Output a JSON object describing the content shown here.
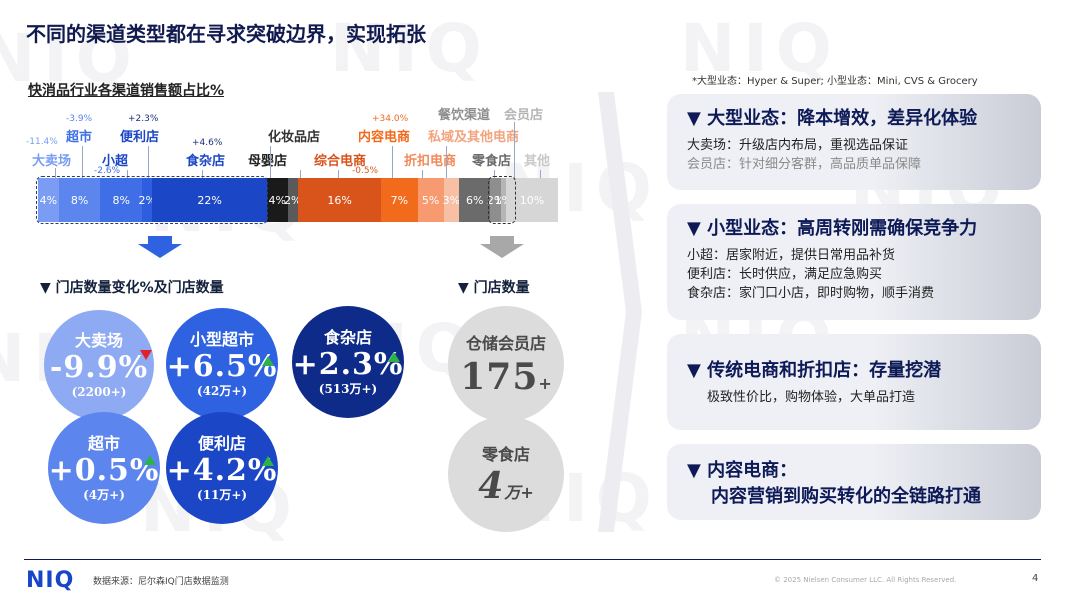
{
  "title": "不同的渠道类型都在寻求突破边界，实现拓张",
  "watermark": "NIQ",
  "chart_subtitle": "快消品行业各渠道销售额占比%",
  "format_note": "*大型业态：Hyper & Super;     小型业态：Mini, CVS & Grocery",
  "chart_data": {
    "type": "bar",
    "stacked": true,
    "categories": [
      "大卖场",
      "超市",
      "小超",
      "便利店",
      "食杂店",
      "母婴店",
      "化妆品店",
      "综合电商",
      "内容电商",
      "折扣电商",
      "私域及其他电商",
      "零食店",
      "会员店",
      "餐饮渠道",
      "其他"
    ],
    "values": [
      4,
      8,
      8,
      2,
      22,
      4,
      2,
      16,
      7,
      5,
      3,
      6,
      2,
      1,
      10
    ],
    "value_labels": [
      "4%",
      "8%",
      "8%",
      "2%",
      "22%",
      "4%",
      "2%",
      "16%",
      "7%",
      "5%",
      "3%",
      "6%",
      "2%",
      "1%",
      "10%"
    ],
    "change_labels": {
      "大卖场": "-11.4%",
      "超市": "-3.9%",
      "小超": "-2.6%",
      "便利店": "+2.3%",
      "食杂店": "+4.6%",
      "综合电商": "-0.5%",
      "内容电商": "+34.0%"
    },
    "colors": [
      "#7a9cf2",
      "#5c86ee",
      "#3f6ee6",
      "#2d5ee0",
      "#1b46c6",
      "#1a1a1a",
      "#5a5a5a",
      "#d9541a",
      "#f26a1b",
      "#f79a70",
      "#f7bfa4",
      "#6b6b6b",
      "#8e8e8e",
      "#b5b5b5",
      "#d6d6d6"
    ]
  },
  "bar_labels": [
    {
      "text": "-11.4%",
      "color": "#7a9cf2"
    },
    {
      "text": "大卖场",
      "color": "#7a9cf2"
    },
    {
      "text": "-3.9%",
      "color": "#5c86ee"
    },
    {
      "text": "超市",
      "color": "#3f6ee6"
    },
    {
      "text": "小超",
      "color": "#1b46c6"
    },
    {
      "text": "-2.6%",
      "color": "#3f6ee6"
    },
    {
      "text": "+2.3%",
      "color": "#1a2f7a"
    },
    {
      "text": "便利店",
      "color": "#1b46c6"
    },
    {
      "text": "+4.6%",
      "color": "#1a2f7a"
    },
    {
      "text": "食杂店",
      "color": "#1b46c6"
    },
    {
      "text": "母婴店",
      "color": "#222"
    },
    {
      "text": "化妆品店",
      "color": "#333"
    },
    {
      "text": "综合电商",
      "color": "#d9541a"
    },
    {
      "text": "-0.5%",
      "color": "#d9541a"
    },
    {
      "text": "+34.0%",
      "color": "#f26a1b"
    },
    {
      "text": "内容电商",
      "color": "#f26a1b"
    },
    {
      "text": "折扣电商",
      "color": "#f28a5a"
    },
    {
      "text": "私域及其他电商",
      "color": "#f3a37e"
    },
    {
      "text": "零食店",
      "color": "#6b6b6b"
    },
    {
      "text": "餐饮渠道",
      "color": "#8e8e8e"
    },
    {
      "text": "会员店",
      "color": "#b5b5b5"
    },
    {
      "text": "其他",
      "color": "#c8c8c8"
    }
  ],
  "store_section_title": "▼ 门店数量变化%及门店数量",
  "store_count_title": "▼ 门店数量",
  "circles": [
    {
      "name": "大卖场",
      "value": "-9.9%",
      "count": "(2200+)",
      "trend": "down",
      "color": "#8eaaf2"
    },
    {
      "name": "小型超市",
      "value": "+6.5%",
      "count": "(42万+)",
      "trend": "up",
      "color": "#2f62e0"
    },
    {
      "name": "食杂店",
      "value": "+2.3%",
      "count": "(513万+)",
      "trend": "up",
      "color": "#0e2b8a"
    },
    {
      "name": "超市",
      "value": "+0.5%",
      "count": "(4万+)",
      "trend": "up",
      "color": "#5c86ee"
    },
    {
      "name": "便利店",
      "value": "+4.2%",
      "count": "(11万+)",
      "trend": "up",
      "color": "#1b46c6"
    }
  ],
  "gray_circles": [
    {
      "name": "仓储会员店",
      "value": "175",
      "suffix": "+"
    },
    {
      "name": "零食店",
      "value": "4",
      "suffix": "万+"
    }
  ],
  "panels": [
    {
      "heading": "▼ 大型业态：降本增效，差异化体验",
      "lines": [
        "大卖场：升级店内布局，重视选品保证",
        "会员店：针对细分客群，高品质单品保障"
      ]
    },
    {
      "heading": "▼ 小型业态：高周转刚需确保竞争力",
      "lines": [
        "小超：居家附近，提供日常用品补货",
        "便利店：长时供应，满足应急购买",
        "食杂店：家门口小店，即时购物，顺手消费"
      ]
    },
    {
      "heading": "▼ 传统电商和折扣店：存量挖潜",
      "lines": [
        "极致性价比，购物体验，大单品打造"
      ]
    },
    {
      "heading": "▼ 内容电商：",
      "lines": [
        "内容营销到购买转化的全链路打通"
      ]
    }
  ],
  "footer": {
    "logo": "NIQ",
    "source": "数据来源：尼尔森IQ门店数据监测",
    "copyright": "© 2025 Nielsen Consumer LLC. All Rights Reserved.",
    "page": "4"
  }
}
